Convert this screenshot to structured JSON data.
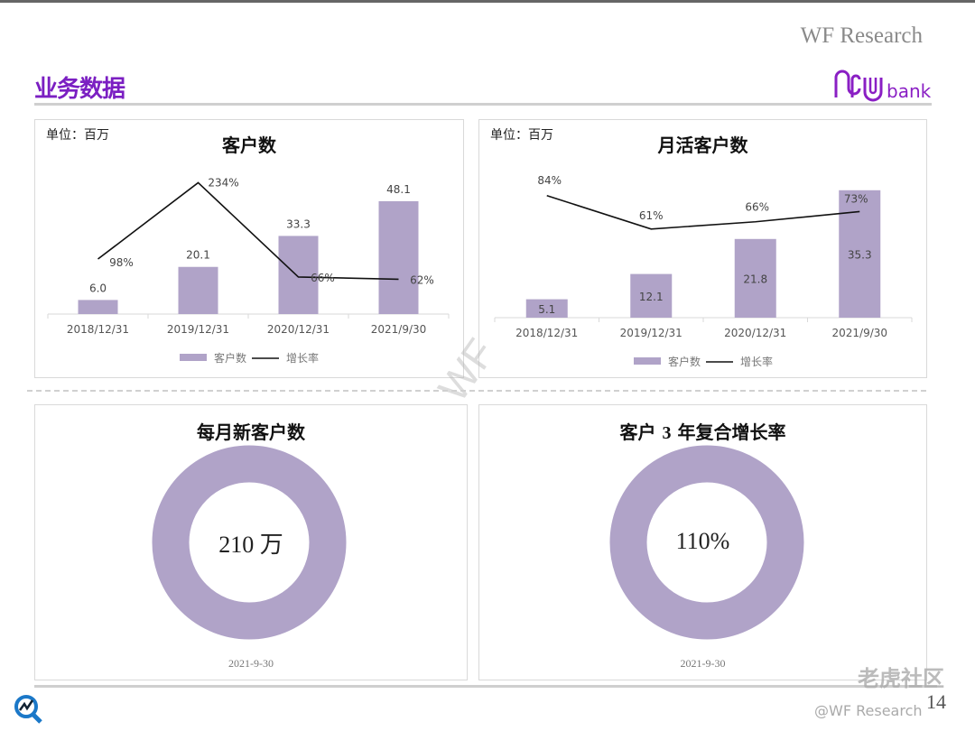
{
  "header": {
    "brand": "WF Research",
    "title": "业务数据",
    "logo_text": "bank"
  },
  "colors": {
    "accent": "#7b1fc2",
    "bar": "#b0a3c8",
    "line": "#111111"
  },
  "chart_data": [
    {
      "type": "bar",
      "title": "客户数",
      "unit_label": "单位：百万",
      "categories": [
        "2018/12/31",
        "2019/12/31",
        "2020/12/31",
        "2021/9/30"
      ],
      "series": [
        {
          "name": "客户数",
          "type": "bar",
          "values": [
            6.0,
            20.1,
            33.3,
            48.1
          ],
          "labels": [
            "6.0",
            "20.1",
            "33.3",
            "48.1"
          ]
        },
        {
          "name": "增长率",
          "type": "line",
          "values": [
            98,
            234,
            66,
            62
          ],
          "labels": [
            "98%",
            "234%",
            "66%",
            "62%"
          ]
        }
      ],
      "legend": "bottom"
    },
    {
      "type": "bar",
      "title": "月活客户数",
      "unit_label": "单位：百万",
      "categories": [
        "2018/12/31",
        "2019/12/31",
        "2020/12/31",
        "2021/9/30"
      ],
      "series": [
        {
          "name": "客户数",
          "type": "bar",
          "values": [
            5.1,
            12.1,
            21.8,
            35.3
          ],
          "labels": [
            "5.1",
            "12.1",
            "21.8",
            "35.3"
          ]
        },
        {
          "name": "增长率",
          "type": "line",
          "values": [
            84,
            61,
            66,
            73
          ],
          "labels": [
            "84%",
            "61%",
            "66%",
            "73%"
          ]
        }
      ],
      "legend": "bottom"
    },
    {
      "type": "pie",
      "title_pre": "客户",
      "title_num": "3",
      "title_post": "年复合增长率",
      "value_label": "110%",
      "date": "2021-9-30"
    }
  ],
  "kpis": {
    "monthly_new": {
      "title": "每月新客户数",
      "value_label": "210 万",
      "date": "2021-9-30"
    },
    "cagr": {
      "title_pre": "客户",
      "title_num": "3",
      "title_post": "年复合增长率",
      "value_label": "110%",
      "date": "2021-9-30"
    }
  },
  "footer": {
    "page": "14",
    "watermark": "WF",
    "social": "老虎社区",
    "handle": "@WF Research"
  }
}
